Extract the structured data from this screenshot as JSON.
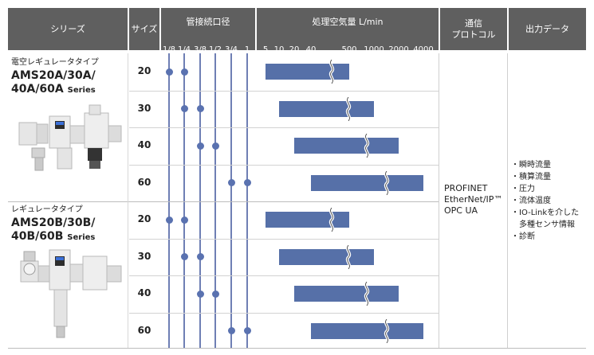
{
  "header": {
    "series": "シリーズ",
    "size": "サイズ",
    "pipe": "管接続口径",
    "flow": "処理空気量 L/min",
    "protocol_line1": "通信",
    "protocol_line2": "プロトコル",
    "output": "出力データ"
  },
  "pipe_ticks": [
    "1/8",
    "1/4",
    "3/8",
    "1/2",
    "3/4",
    "1"
  ],
  "flow_ticks": [
    "5",
    "10",
    "20",
    "40",
    "500",
    "1000",
    "2000",
    "4000"
  ],
  "groups": [
    {
      "title": "電空レギュレータタイプ",
      "model_line1": "AMS20A/30A/",
      "model_line2": "40A/60A",
      "series_suffix": "Series",
      "rows": [
        {
          "size": "20",
          "pipes": [
            "1/8",
            "1/4"
          ],
          "flow_min": 5,
          "flow_max": 500
        },
        {
          "size": "30",
          "pipes": [
            "1/4",
            "3/8"
          ],
          "flow_min": 10,
          "flow_max": 1000
        },
        {
          "size": "40",
          "pipes": [
            "3/8",
            "1/2"
          ],
          "flow_min": 20,
          "flow_max": 2000
        },
        {
          "size": "60",
          "pipes": [
            "3/4",
            "1"
          ],
          "flow_min": 40,
          "flow_max": 4000
        }
      ]
    },
    {
      "title": "レギュレータタイプ",
      "model_line1": "AMS20B/30B/",
      "model_line2": "40B/60B",
      "series_suffix": "Series",
      "rows": [
        {
          "size": "20",
          "pipes": [
            "1/8",
            "1/4"
          ],
          "flow_min": 5,
          "flow_max": 500
        },
        {
          "size": "30",
          "pipes": [
            "1/4",
            "3/8"
          ],
          "flow_min": 10,
          "flow_max": 1000
        },
        {
          "size": "40",
          "pipes": [
            "3/8",
            "1/2"
          ],
          "flow_min": 20,
          "flow_max": 2000
        },
        {
          "size": "60",
          "pipes": [
            "3/4",
            "1"
          ],
          "flow_min": 40,
          "flow_max": 4000
        }
      ]
    }
  ],
  "protocols": [
    "PROFINET",
    "EtherNet/IP™",
    "OPC UA"
  ],
  "outputs": [
    "・瞬時流量",
    "・積算流量",
    "・圧力",
    "・流体温度",
    "・IO-Linkを介した",
    "　多種センサ情報",
    "・診断"
  ],
  "colors": {
    "header": "#5f5f5f",
    "bar": "#5670a8",
    "line": "#6f7fb4"
  }
}
